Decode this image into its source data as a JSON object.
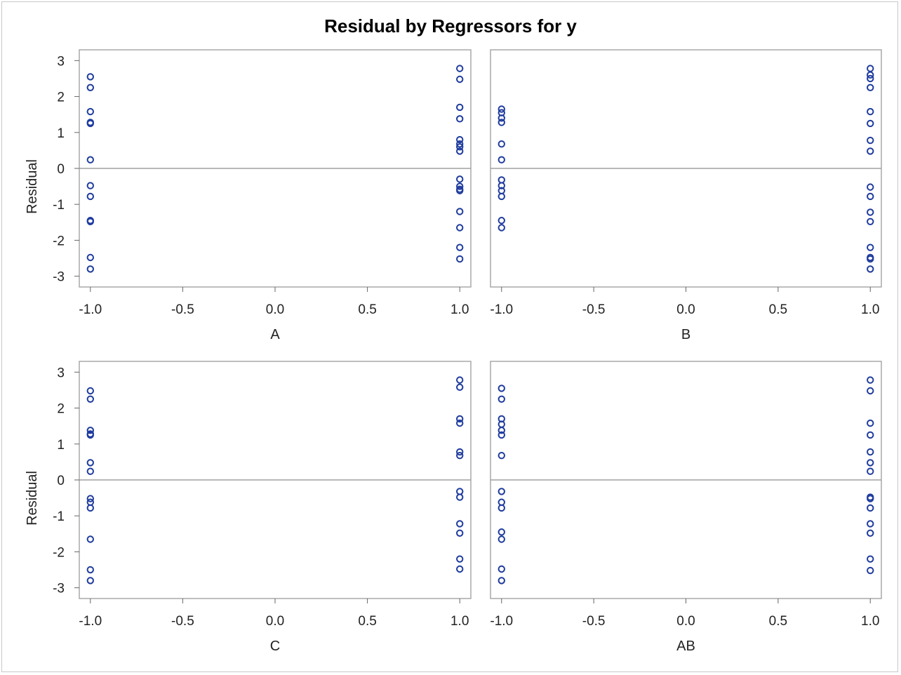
{
  "chart_data": {
    "type": "scatter",
    "title": "Residual by Regressors for y",
    "marker_color": "#1f3c9e",
    "reference_line_color": "#a0a0a0",
    "frame_color": "#a8a8a8",
    "panels": [
      {
        "xlabel": "A",
        "ylabel": "Residual",
        "xlim": [
          -1.06,
          1.06
        ],
        "ylim": [
          -3.3,
          3.3
        ],
        "xticks": [
          "-1.0",
          "-0.5",
          "0.0",
          "0.5",
          "1.0"
        ],
        "yticks": [
          "3",
          "2",
          "1",
          "0",
          "-1",
          "-2",
          "-3"
        ],
        "series": [
          {
            "x": -1,
            "values": [
              2.55,
              2.25,
              1.58,
              1.28,
              1.25,
              0.24,
              -0.48,
              -0.78,
              -1.45,
              -1.48,
              -2.48,
              -2.8
            ]
          },
          {
            "x": 1,
            "values": [
              2.78,
              2.48,
              1.7,
              1.38,
              0.8,
              0.68,
              0.6,
              0.48,
              -0.3,
              -0.5,
              -0.58,
              -0.62,
              -1.2,
              -1.65,
              -2.2,
              -2.52
            ]
          }
        ]
      },
      {
        "xlabel": "B",
        "ylabel": "",
        "xlim": [
          -1.06,
          1.06
        ],
        "ylim": [
          -3.3,
          3.3
        ],
        "xticks": [
          "-1.0",
          "-0.5",
          "0.0",
          "0.5",
          "1.0"
        ],
        "yticks": [],
        "series": [
          {
            "x": -1,
            "values": [
              1.65,
              1.55,
              1.4,
              1.28,
              0.68,
              0.24,
              -0.32,
              -0.48,
              -0.62,
              -0.78,
              -1.45,
              -1.65
            ]
          },
          {
            "x": 1,
            "values": [
              2.78,
              2.6,
              2.5,
              2.25,
              1.58,
              1.25,
              0.78,
              0.48,
              -0.52,
              -0.78,
              -1.22,
              -1.48,
              -2.2,
              -2.48,
              -2.52,
              -2.8
            ]
          }
        ]
      },
      {
        "xlabel": "C",
        "ylabel": "Residual",
        "xlim": [
          -1.06,
          1.06
        ],
        "ylim": [
          -3.3,
          3.3
        ],
        "xticks": [
          "-1.0",
          "-0.5",
          "0.0",
          "0.5",
          "1.0"
        ],
        "yticks": [
          "3",
          "2",
          "1",
          "0",
          "-1",
          "-2",
          "-3"
        ],
        "series": [
          {
            "x": -1,
            "values": [
              2.48,
              2.25,
              1.38,
              1.28,
              1.25,
              0.48,
              0.24,
              -0.52,
              -0.62,
              -0.78,
              -1.65,
              -2.5,
              -2.8
            ]
          },
          {
            "x": 1,
            "values": [
              2.78,
              2.58,
              1.7,
              1.58,
              0.78,
              0.68,
              -0.32,
              -0.48,
              -1.22,
              -1.48,
              -2.2,
              -2.48
            ]
          }
        ]
      },
      {
        "xlabel": "AB",
        "ylabel": "",
        "xlim": [
          -1.06,
          1.06
        ],
        "ylim": [
          -3.3,
          3.3
        ],
        "xticks": [
          "-1.0",
          "-0.5",
          "0.0",
          "0.5",
          "1.0"
        ],
        "yticks": [],
        "series": [
          {
            "x": -1,
            "values": [
              2.55,
              2.25,
              1.7,
              1.55,
              1.38,
              1.25,
              0.68,
              -0.32,
              -0.62,
              -0.78,
              -1.45,
              -1.65,
              -2.48,
              -2.8
            ]
          },
          {
            "x": 1,
            "values": [
              2.78,
              2.48,
              1.58,
              1.25,
              0.78,
              0.48,
              0.24,
              -0.48,
              -0.52,
              -0.78,
              -1.22,
              -1.48,
              -2.2,
              -2.52
            ]
          }
        ]
      }
    ]
  }
}
